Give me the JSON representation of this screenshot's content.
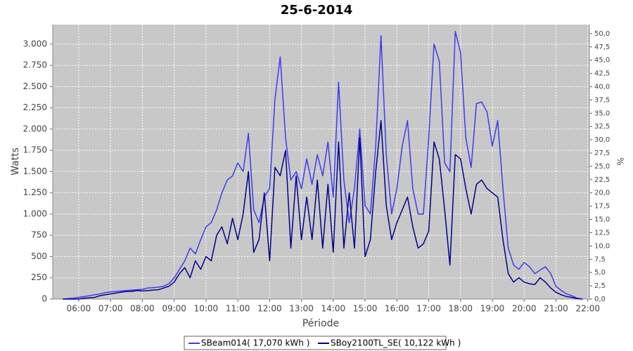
{
  "chart_data": {
    "type": "line",
    "title": "25-6-2014",
    "xlabel": "Période",
    "ylabel": "Watts",
    "y2label": "%",
    "x": [
      "05:30",
      "05:40",
      "05:50",
      "06:00",
      "06:10",
      "06:20",
      "06:30",
      "06:40",
      "06:50",
      "07:00",
      "07:10",
      "07:20",
      "07:30",
      "07:40",
      "07:50",
      "08:00",
      "08:10",
      "08:20",
      "08:30",
      "08:40",
      "08:50",
      "09:00",
      "09:10",
      "09:20",
      "09:30",
      "09:40",
      "09:50",
      "10:00",
      "10:10",
      "10:20",
      "10:30",
      "10:40",
      "10:50",
      "11:00",
      "11:10",
      "11:20",
      "11:30",
      "11:40",
      "11:50",
      "12:00",
      "12:10",
      "12:20",
      "12:30",
      "12:40",
      "12:50",
      "13:00",
      "13:10",
      "13:20",
      "13:30",
      "13:40",
      "13:50",
      "14:00",
      "14:10",
      "14:20",
      "14:30",
      "14:40",
      "14:50",
      "15:00",
      "15:10",
      "15:20",
      "15:30",
      "15:40",
      "15:50",
      "16:00",
      "16:10",
      "16:20",
      "16:30",
      "16:40",
      "16:50",
      "17:00",
      "17:10",
      "17:20",
      "17:30",
      "17:40",
      "17:50",
      "18:00",
      "18:10",
      "18:20",
      "18:30",
      "18:40",
      "18:50",
      "19:00",
      "19:10",
      "19:20",
      "19:30",
      "19:40",
      "19:50",
      "20:00",
      "20:10",
      "20:20",
      "20:30",
      "20:40",
      "20:50",
      "21:00",
      "21:10",
      "21:20",
      "21:30",
      "21:40",
      "21:50"
    ],
    "series": [
      {
        "name": "SBeam014( 17,070 kWh )",
        "color": "#3c3cf0",
        "values": [
          0,
          5,
          10,
          20,
          30,
          40,
          50,
          60,
          75,
          85,
          90,
          95,
          100,
          105,
          110,
          115,
          130,
          135,
          140,
          150,
          180,
          250,
          350,
          450,
          600,
          530,
          700,
          850,
          900,
          1050,
          1250,
          1400,
          1450,
          1600,
          1500,
          1950,
          1050,
          900,
          1200,
          1300,
          2350,
          2850,
          1900,
          1400,
          1500,
          1300,
          1650,
          1350,
          1700,
          1450,
          1850,
          1200,
          2550,
          1400,
          900,
          1300,
          2000,
          1100,
          1000,
          1800,
          3100,
          1700,
          1000,
          1300,
          1800,
          2100,
          1300,
          1000,
          1000,
          1900,
          3000,
          2800,
          1600,
          1500,
          3150,
          2900,
          1900,
          1550,
          2300,
          2320,
          2200,
          1800,
          2100,
          1300,
          600,
          400,
          350,
          430,
          380,
          300,
          340,
          380,
          300,
          150,
          100,
          60,
          40,
          10,
          0
        ]
      },
      {
        "name": "SBoy2100TL_SE( 10,122 kWh )",
        "color": "#00008c",
        "values": [
          0,
          0,
          0,
          0,
          10,
          15,
          20,
          40,
          50,
          60,
          70,
          80,
          90,
          90,
          100,
          95,
          100,
          105,
          110,
          130,
          150,
          200,
          300,
          370,
          250,
          450,
          350,
          500,
          450,
          750,
          850,
          650,
          950,
          700,
          1000,
          1500,
          550,
          700,
          1250,
          450,
          1550,
          1450,
          1750,
          600,
          1450,
          700,
          1200,
          700,
          1400,
          600,
          1350,
          550,
          1850,
          600,
          1250,
          600,
          1900,
          500,
          700,
          1500,
          2100,
          1100,
          700,
          900,
          1050,
          1200,
          850,
          600,
          650,
          800,
          1850,
          1650,
          1050,
          400,
          1700,
          1650,
          1300,
          1000,
          1350,
          1400,
          1300,
          1250,
          1200,
          700,
          300,
          200,
          250,
          200,
          180,
          170,
          250,
          200,
          130,
          80,
          50,
          30,
          20,
          5,
          0
        ]
      }
    ],
    "xlim": [
      "05:11",
      "22:03"
    ],
    "xticks": [
      "06:00",
      "07:00",
      "08:00",
      "09:00",
      "10:00",
      "11:00",
      "12:00",
      "13:00",
      "14:00",
      "15:00",
      "16:00",
      "17:00",
      "18:00",
      "19:00",
      "20:00",
      "21:00",
      "22:00"
    ],
    "ylim": [
      0,
      3230
    ],
    "yticks": [
      0,
      250,
      500,
      750,
      {
        "value": 1000,
        "label": "1.000"
      },
      {
        "value": 1250,
        "label": "1.250"
      },
      {
        "value": 1500,
        "label": "1.500"
      },
      {
        "value": 1750,
        "label": "1.750"
      },
      {
        "value": 2000,
        "label": "2.000"
      },
      {
        "value": 2250,
        "label": "2.250"
      },
      {
        "value": 2500,
        "label": "2.500"
      },
      {
        "value": 2750,
        "label": "2.750"
      },
      {
        "value": 3000,
        "label": "3.000"
      }
    ],
    "y2lim": [
      0,
      51.7
    ],
    "y2ticks": [
      {
        "value": 0,
        "label": "0,0"
      },
      {
        "value": 2.5,
        "label": "2,5"
      },
      {
        "value": 5,
        "label": "5,0"
      },
      {
        "value": 7.5,
        "label": "7,5"
      },
      {
        "value": 10,
        "label": "10,0"
      },
      {
        "value": 12.5,
        "label": "12,5"
      },
      {
        "value": 15,
        "label": "15,0"
      },
      {
        "value": 17.5,
        "label": "17,5"
      },
      {
        "value": 20,
        "label": "20,0"
      },
      {
        "value": 22.5,
        "label": "22,5"
      },
      {
        "value": 25,
        "label": "25,0"
      },
      {
        "value": 27.5,
        "label": "27,5"
      },
      {
        "value": 30,
        "label": "30,0"
      },
      {
        "value": 32.5,
        "label": "32,5"
      },
      {
        "value": 35,
        "label": "35,0"
      },
      {
        "value": 37.5,
        "label": "37,5"
      },
      {
        "value": 40,
        "label": "40,0"
      },
      {
        "value": 42.5,
        "label": "42,5"
      },
      {
        "value": 45,
        "label": "45,0"
      },
      {
        "value": 47.5,
        "label": "47,5"
      },
      {
        "value": 50,
        "label": "50,0"
      }
    ],
    "grid": true,
    "legend": "bottom"
  }
}
